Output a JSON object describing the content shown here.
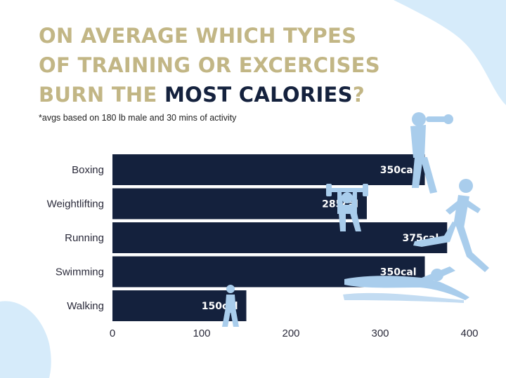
{
  "title": {
    "line1": "ON AVERAGE WHICH TYPES",
    "line2": "OF TRAINING OR EXCERCISES",
    "line3_prefix": "BURN THE ",
    "line3_highlight": "MOST CALORIES",
    "line3_suffix": "?"
  },
  "subtitle": "*avgs based on 180 lb male and 30 mins of activity",
  "colors": {
    "bar": "#14213d",
    "title_gold": "#c2b685",
    "title_dark": "#14213d",
    "decor_blue": "#d6ebfa",
    "silhouette": "#a9cdec"
  },
  "icons": [
    "boxer-icon",
    "weightlifter-icon",
    "runner-icon",
    "swimmer-icon",
    "walker-icon"
  ],
  "chart_data": {
    "type": "bar",
    "orientation": "horizontal",
    "categories": [
      "Boxing",
      "Weightlifting",
      "Running",
      "Swimming",
      "Walking"
    ],
    "values": [
      350,
      285,
      375,
      350,
      150
    ],
    "value_labels": [
      "350cal",
      "285cal",
      "375cal",
      "350cal",
      "150cal"
    ],
    "xlim": [
      0,
      400
    ],
    "xticks": [
      0,
      100,
      200,
      300,
      400
    ],
    "xlabel": "",
    "ylabel": "",
    "grid": false,
    "legend": "none"
  }
}
